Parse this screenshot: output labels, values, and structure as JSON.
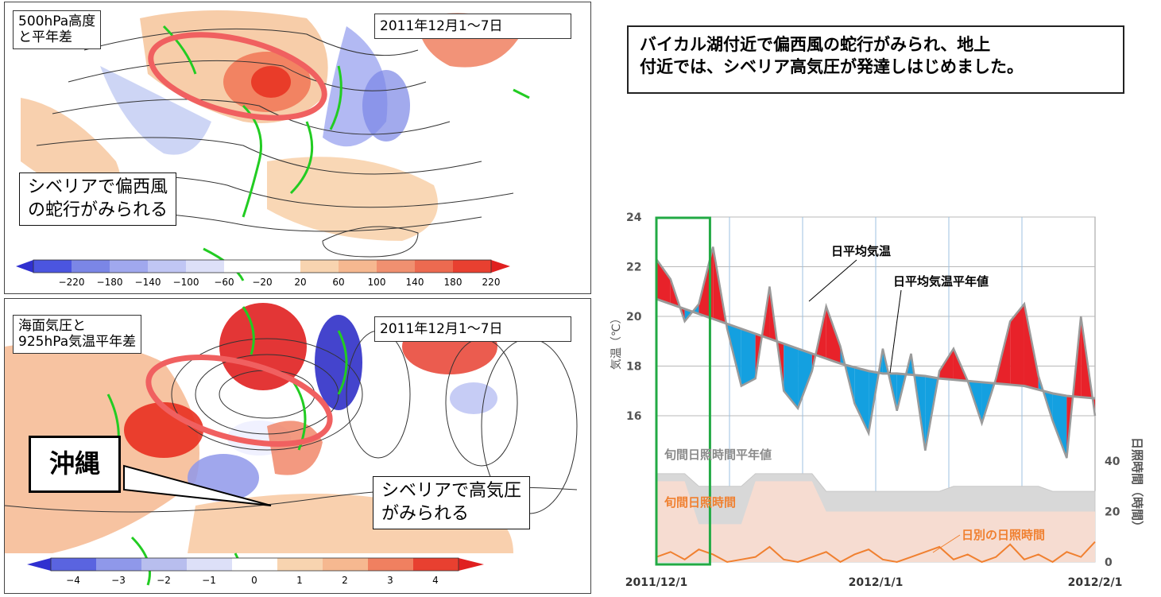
{
  "top_map": {
    "title": "500hPa高度\nと平年差",
    "period": "2011年12月1～7日",
    "annotation": "シベリアで偏西風\nの蛇行がみられる",
    "colorbar_ticks": [
      "−220",
      "−180",
      "−140",
      "−100",
      "−60",
      "−20",
      "20",
      "60",
      "100",
      "140",
      "180",
      "220"
    ]
  },
  "bottom_map": {
    "title": "海面気圧と\n925hPa気温平年差",
    "period": "2011年12月1～7日",
    "annotation": "シベリアで高気圧\nがみられる",
    "place_label": "沖縄",
    "colorbar_ticks": [
      "−4",
      "−3",
      "−2",
      "−1",
      "0",
      "1",
      "2",
      "3",
      "4"
    ]
  },
  "headline": "バイカル湖付近で偏西風の蛇行がみられ、地上\n付近では、シベリア高気圧が発達しはじめました。",
  "colors": {
    "warm": "#e8222a",
    "cool": "#14a0e0",
    "normal_line": "#9a9a9a",
    "sunshine": "#f08030",
    "highlight_box": "#22aa44"
  },
  "chart_data": {
    "type": "line",
    "ylabel": "気温（℃）",
    "y2label": "日照時間（時間）",
    "ylim": [
      14,
      24
    ],
    "yticks": [
      "24",
      "22",
      "20",
      "18",
      "16"
    ],
    "y2ticks": [
      "40",
      "20",
      "0"
    ],
    "xticks": [
      "2011/12/1",
      "2012/1/1",
      "2012/2/1"
    ],
    "annotations": {
      "daily_mean": "日平均気温",
      "normal": "日平均気温平年値",
      "normal_sunshine": "旬間日照時間平年値",
      "dekad_sunshine": "旬間日照時間",
      "daily_sunshine": "日別の日照時間"
    },
    "x_days": [
      0,
      2,
      4,
      6,
      8,
      10,
      12,
      14,
      16,
      18,
      20,
      22,
      24,
      26,
      28,
      30,
      32,
      34,
      36,
      38,
      40,
      42,
      44,
      46,
      48,
      50,
      52,
      54,
      56,
      58,
      60,
      62
    ],
    "daily_mean_temp": [
      22.3,
      21.5,
      19.8,
      20.5,
      22.8,
      19.5,
      17.2,
      17.5,
      21.2,
      17.0,
      16.3,
      17.8,
      20.4,
      18.8,
      16.5,
      15.3,
      18.7,
      16.2,
      18.5,
      14.6,
      17.8,
      18.7,
      17.4,
      15.7,
      17.5,
      19.8,
      20.5,
      17.6,
      15.8,
      14.3,
      20.0,
      16.0
    ],
    "normal_temp": [
      20.7,
      20.5,
      20.3,
      20.1,
      19.9,
      19.7,
      19.5,
      19.3,
      19.1,
      18.9,
      18.7,
      18.5,
      18.3,
      18.1,
      17.95,
      17.8,
      17.7,
      17.7,
      17.65,
      17.6,
      17.5,
      17.45,
      17.4,
      17.35,
      17.3,
      17.25,
      17.2,
      17.05,
      16.9,
      16.8,
      16.75,
      16.7
    ],
    "dekad_sunshine_normal": [
      35,
      35,
      35,
      30,
      30,
      30,
      30,
      35,
      35,
      35,
      35,
      35,
      28,
      28,
      28,
      28,
      28,
      28,
      28,
      28,
      28,
      30,
      30,
      30,
      30,
      30,
      30,
      30,
      28,
      28,
      28,
      28
    ],
    "dekad_sunshine": [
      32,
      32,
      32,
      15,
      15,
      15,
      15,
      32,
      32,
      32,
      32,
      32,
      20,
      20,
      20,
      20,
      20,
      20,
      20,
      20,
      20,
      20,
      20,
      20,
      20,
      20,
      20,
      20,
      20,
      20,
      20,
      20
    ],
    "daily_sunshine": [
      2,
      4,
      1,
      5,
      3,
      0,
      1,
      2,
      6,
      1,
      0,
      2,
      4,
      0,
      3,
      5,
      1,
      0,
      2,
      4,
      6,
      1,
      3,
      0,
      2,
      7,
      1,
      3,
      0,
      4,
      2,
      8
    ]
  }
}
